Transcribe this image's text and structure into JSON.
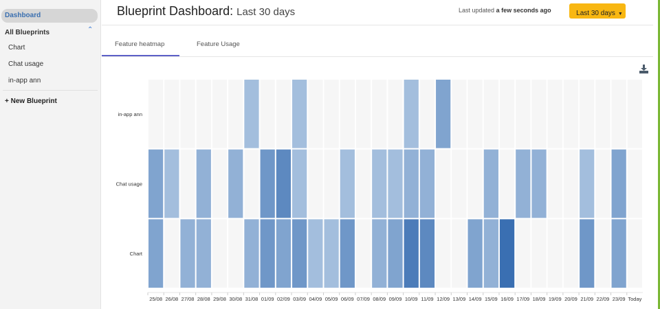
{
  "sidebar": {
    "dashboard": "Dashboard",
    "all_blueprints": "All Blueprints",
    "items": [
      "Chart",
      "Chat usage",
      "in-app ann"
    ],
    "new_blueprint": "+ New Blueprint"
  },
  "header": {
    "title": "Blueprint Dashboard:",
    "subtitle": "Last 30 days",
    "updated_prefix": "Last updated",
    "updated_value": "a few seconds ago",
    "range_button": "Last 30 days"
  },
  "tabs": [
    {
      "label": "Feature heatmap",
      "active": true
    },
    {
      "label": "Feature Usage",
      "active": false
    }
  ],
  "colors": {
    "empty": "#f6f6f6",
    "low": "#a3bedd",
    "high": "#3a6fb2",
    "accent": "#f8b712",
    "tab": "#5b5fc7"
  },
  "chart_data": {
    "type": "heatmap",
    "x": [
      "25/08",
      "26/08",
      "27/08",
      "28/08",
      "29/08",
      "30/08",
      "31/08",
      "01/09",
      "02/09",
      "03/09",
      "04/09",
      "05/09",
      "06/09",
      "07/09",
      "08/09",
      "09/09",
      "10/09",
      "11/09",
      "12/09",
      "13/09",
      "14/09",
      "15/09",
      "16/09",
      "17/09",
      "18/09",
      "19/09",
      "20/09",
      "21/09",
      "22/09",
      "23/09",
      "Today"
    ],
    "y": [
      "in-app ann",
      "Chat usage",
      "Chart"
    ],
    "values": [
      [
        0,
        0,
        0,
        0,
        0,
        0,
        1,
        0,
        0,
        1,
        0,
        0,
        0,
        0,
        0,
        0,
        1,
        0,
        3,
        0,
        0,
        0,
        0,
        0,
        0,
        0,
        0,
        0,
        0,
        0,
        0
      ],
      [
        3,
        1,
        0,
        2,
        0,
        2,
        0,
        4,
        5,
        1,
        0,
        0,
        1,
        0,
        1,
        1,
        2,
        2,
        0,
        0,
        0,
        2,
        0,
        2,
        2,
        0,
        0,
        1,
        0,
        3,
        0
      ],
      [
        3,
        0,
        2,
        2,
        0,
        0,
        2,
        4,
        3,
        4,
        1,
        1,
        4,
        0,
        2,
        3,
        6,
        5,
        0,
        0,
        3,
        2,
        7,
        0,
        0,
        0,
        0,
        4,
        0,
        3,
        0
      ]
    ],
    "max": 7
  }
}
